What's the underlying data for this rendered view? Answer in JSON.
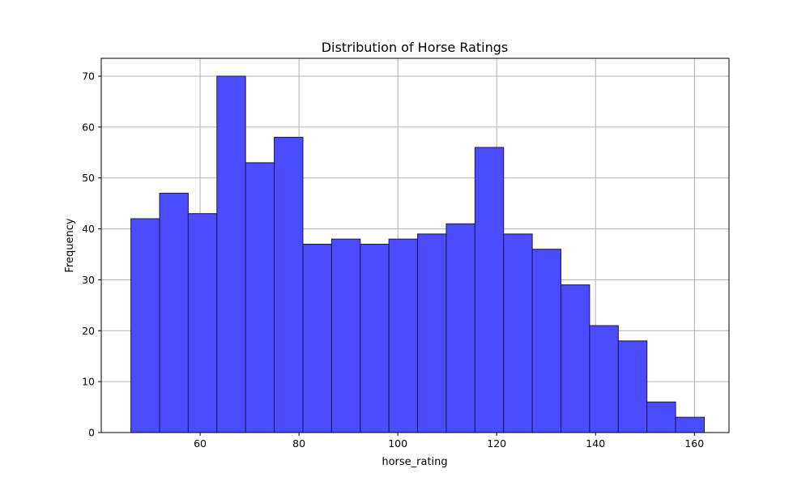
{
  "chart_data": {
    "type": "bar",
    "title": "Distribution of Horse Ratings",
    "xlabel": "horse_rating",
    "ylabel": "Frequency",
    "xlim": [
      40,
      167
    ],
    "ylim": [
      0,
      73.5
    ],
    "x_ticks": [
      60,
      80,
      100,
      120,
      140,
      160
    ],
    "y_ticks": [
      0,
      10,
      20,
      30,
      40,
      50,
      60,
      70
    ],
    "grid": true,
    "bar_color": "#4b4bff",
    "edge_color": "#1a1a4a",
    "bins": [
      {
        "start": 46.0,
        "end": 51.8,
        "value": 42
      },
      {
        "start": 51.8,
        "end": 57.6,
        "value": 47
      },
      {
        "start": 57.6,
        "end": 63.4,
        "value": 43
      },
      {
        "start": 63.4,
        "end": 69.2,
        "value": 70
      },
      {
        "start": 69.2,
        "end": 75.0,
        "value": 53
      },
      {
        "start": 75.0,
        "end": 80.8,
        "value": 58
      },
      {
        "start": 80.8,
        "end": 86.6,
        "value": 37
      },
      {
        "start": 86.6,
        "end": 92.4,
        "value": 38
      },
      {
        "start": 92.4,
        "end": 98.2,
        "value": 37
      },
      {
        "start": 98.2,
        "end": 104.0,
        "value": 38
      },
      {
        "start": 104.0,
        "end": 109.8,
        "value": 39
      },
      {
        "start": 109.8,
        "end": 115.6,
        "value": 41
      },
      {
        "start": 115.6,
        "end": 121.4,
        "value": 56
      },
      {
        "start": 121.4,
        "end": 127.2,
        "value": 39
      },
      {
        "start": 127.2,
        "end": 133.0,
        "value": 36
      },
      {
        "start": 133.0,
        "end": 138.8,
        "value": 29
      },
      {
        "start": 138.8,
        "end": 144.6,
        "value": 21
      },
      {
        "start": 144.6,
        "end": 150.4,
        "value": 18
      },
      {
        "start": 150.4,
        "end": 156.2,
        "value": 6
      },
      {
        "start": 156.2,
        "end": 162.0,
        "value": 3
      }
    ]
  }
}
